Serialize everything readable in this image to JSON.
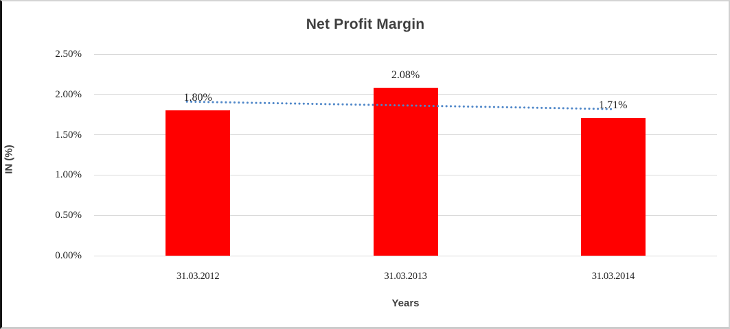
{
  "chart_data": {
    "type": "bar",
    "title": "Net Profit Margin",
    "xlabel": "Years",
    "ylabel": "IN (%)",
    "categories": [
      "31.03.2012",
      "31.03.2013",
      "31.03.2014"
    ],
    "values": [
      1.8,
      2.08,
      1.71
    ],
    "data_labels": [
      "1.80%",
      "2.08%",
      "1.71%"
    ],
    "ytick_labels": [
      "0.00%",
      "0.50%",
      "1.00%",
      "1.50%",
      "2.00%",
      "2.50%"
    ],
    "ylim": [
      0,
      2.5
    ],
    "ytick_step": 0.5,
    "grid": true,
    "legend": "none",
    "bar_color": "#ff0000",
    "gridline_color": "#d9d9d9",
    "trendline": {
      "type": "linear",
      "style": "dotted",
      "color": "#4e86c8"
    }
  }
}
